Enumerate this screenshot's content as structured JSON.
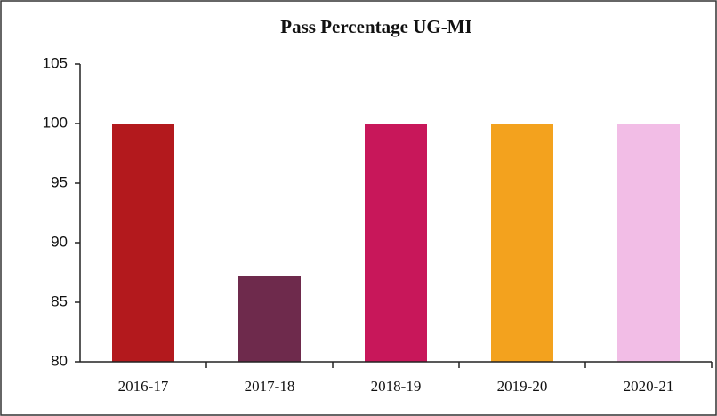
{
  "chart_data": {
    "type": "bar",
    "title": "Pass Percentage UG-MI",
    "categories": [
      "2016-17",
      "2017-18",
      "2018-19",
      "2019-20",
      "2020-21"
    ],
    "values": [
      100,
      87.2,
      100,
      100,
      100
    ],
    "colors": [
      "#b3191d",
      "#6e2a4c",
      "#c8175a",
      "#f3a21e",
      "#f2bde6"
    ],
    "ylim": [
      80,
      105
    ],
    "yticks": [
      80,
      85,
      90,
      95,
      100,
      105
    ],
    "grid": false
  }
}
